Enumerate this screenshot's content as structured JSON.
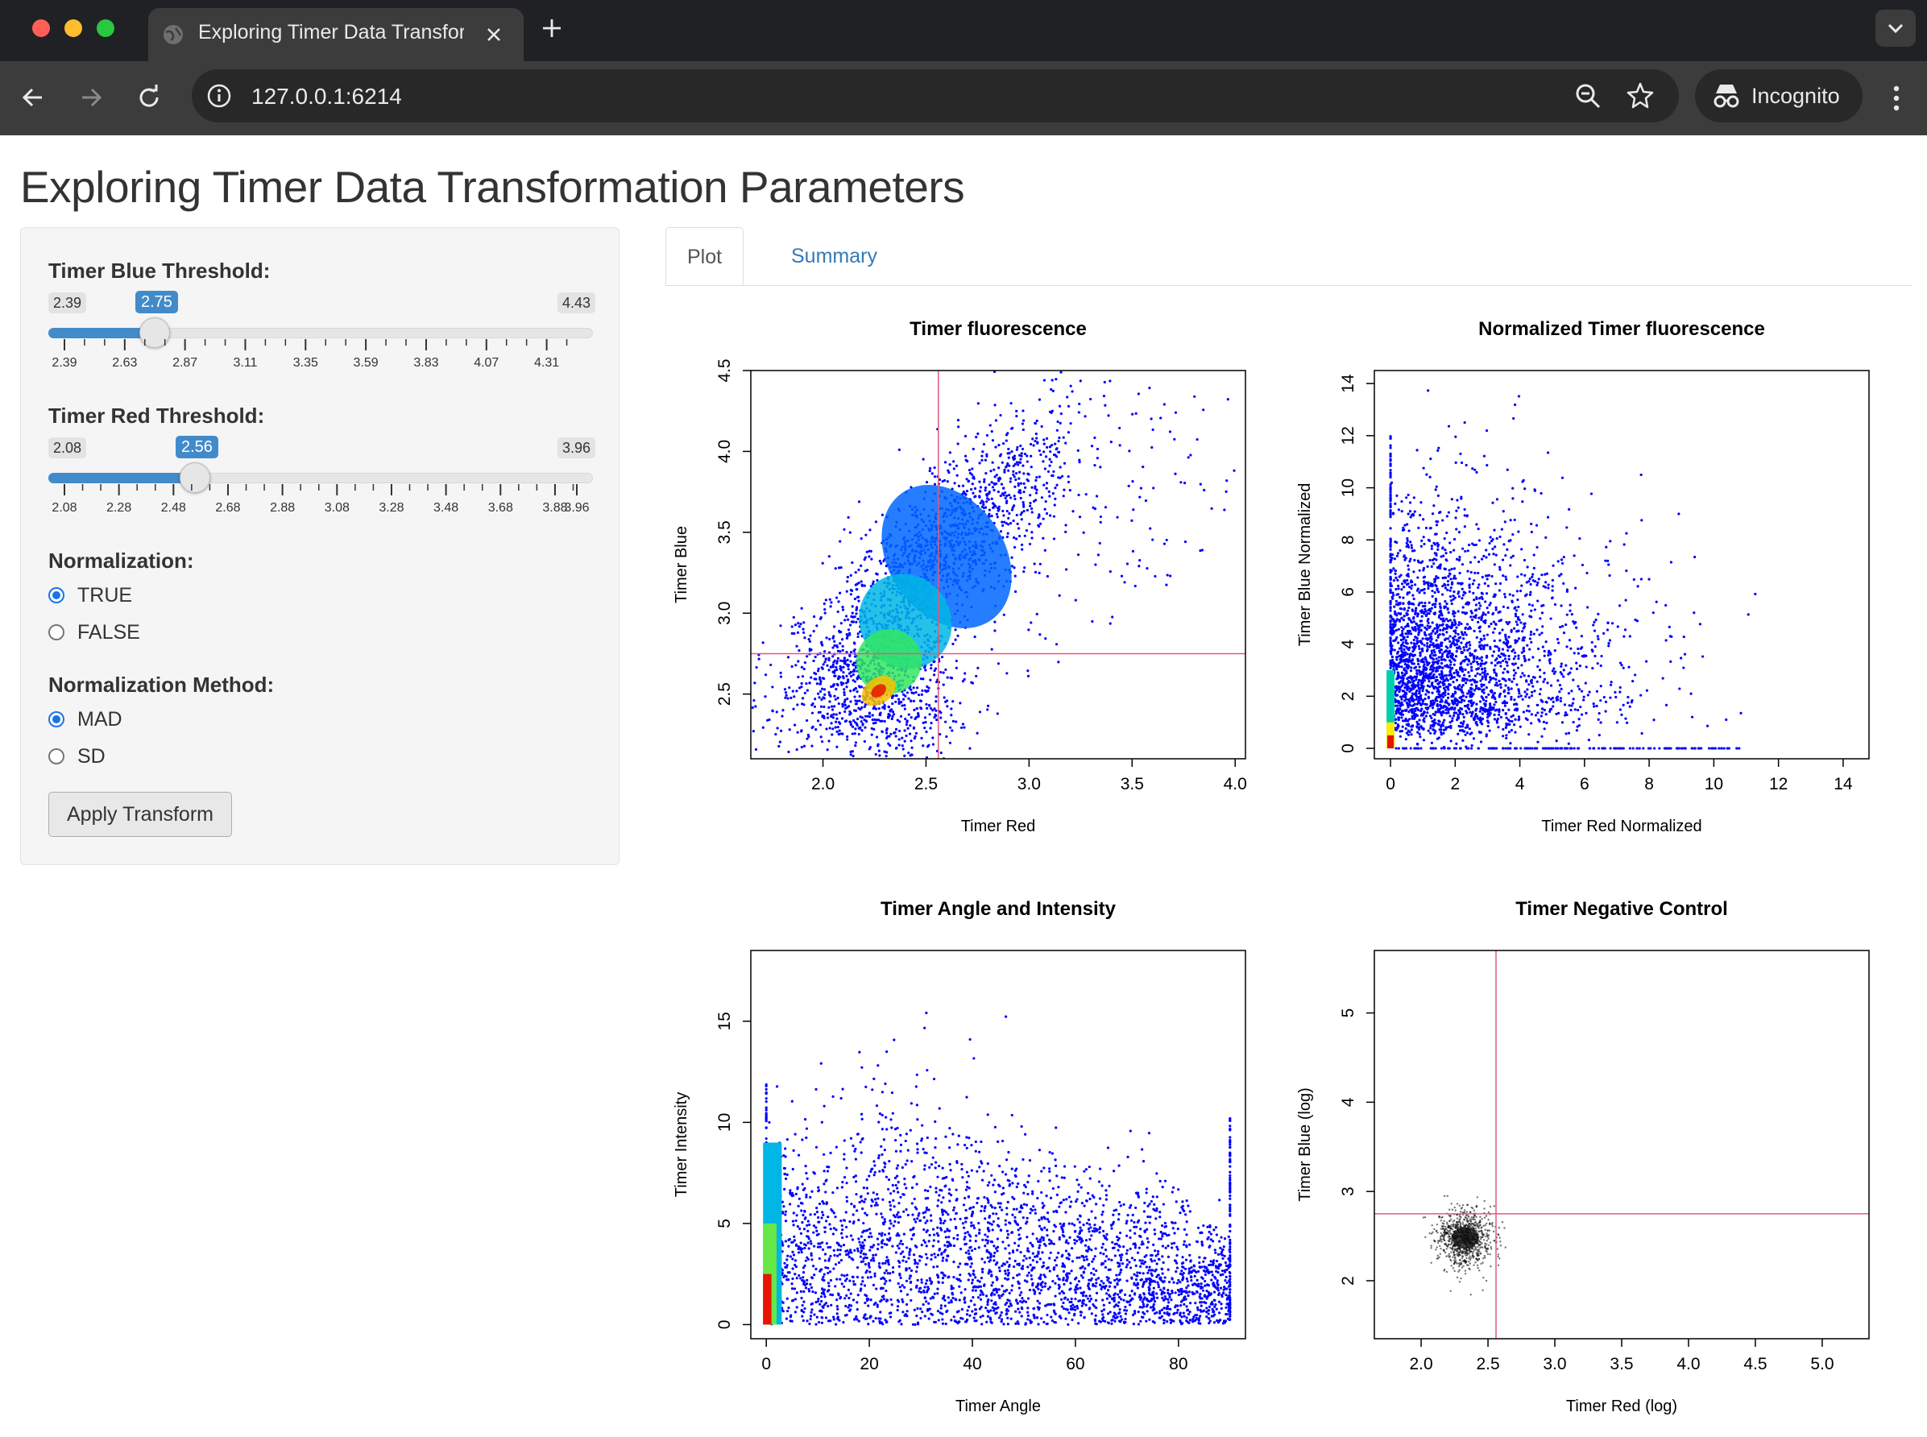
{
  "browser": {
    "tab_title": "Exploring Timer Data Transfor",
    "url": "127.0.0.1:6214",
    "incognito_label": "Incognito"
  },
  "page": {
    "title": "Exploring Timer Data Transformation Parameters"
  },
  "sidebar": {
    "blue_threshold": {
      "label": "Timer Blue Threshold:",
      "min": "2.39",
      "max": "4.43",
      "value": "2.75",
      "ticks": [
        "2.39",
        "2.63",
        "2.87",
        "3.11",
        "3.35",
        "3.59",
        "3.83",
        "4.07",
        "4.31"
      ]
    },
    "red_threshold": {
      "label": "Timer Red Threshold:",
      "min": "2.08",
      "max": "3.96",
      "value": "2.56",
      "ticks": [
        "2.08",
        "2.28",
        "2.48",
        "2.68",
        "2.88",
        "3.08",
        "3.28",
        "3.48",
        "3.68",
        "3.88",
        "3.96"
      ]
    },
    "normalization": {
      "label": "Normalization:",
      "options": [
        "TRUE",
        "FALSE"
      ],
      "selected": "TRUE"
    },
    "normalization_method": {
      "label": "Normalization Method:",
      "options": [
        "MAD",
        "SD"
      ],
      "selected": "MAD"
    },
    "apply_button": "Apply Transform"
  },
  "tabs": {
    "plot": "Plot",
    "summary": "Summary",
    "active": "Plot"
  },
  "chart_data": [
    {
      "type": "scatter",
      "title": "Timer fluorescence",
      "xlabel": "Timer Red",
      "ylabel": "Timer Blue",
      "xlim": [
        1.65,
        4.05
      ],
      "ylim": [
        2.1,
        4.5
      ],
      "xticks": [
        "2.0",
        "2.5",
        "3.0",
        "3.5",
        "4.0"
      ],
      "yticks": [
        "2.5",
        "3.0",
        "3.5",
        "4.0",
        "4.5"
      ],
      "thresholds": {
        "x": 2.56,
        "y": 2.75
      },
      "density_peak": {
        "x": 2.27,
        "y": 2.52
      },
      "colormap": "density: blue to green to yellow to red",
      "grid": false
    },
    {
      "type": "scatter",
      "title": "Normalized Timer fluorescence",
      "xlabel": "Timer Red Normalized",
      "ylabel": "Timer Blue Normalized",
      "xlim": [
        -0.5,
        14.8
      ],
      "ylim": [
        -0.4,
        14.5
      ],
      "xticks": [
        "0",
        "2",
        "4",
        "6",
        "8",
        "10",
        "12",
        "14"
      ],
      "yticks": [
        "0",
        "2",
        "4",
        "6",
        "8",
        "10",
        "12",
        "14"
      ],
      "density_peak": {
        "x": 0,
        "y": 0
      },
      "colormap": "density: blue to green to yellow to red",
      "grid": false
    },
    {
      "type": "scatter",
      "title": "Timer Angle and Intensity",
      "xlabel": "Timer Angle",
      "ylabel": "Timer Intensity",
      "xlim": [
        -3,
        93
      ],
      "ylim": [
        -0.7,
        18.5
      ],
      "xticks": [
        "0",
        "20",
        "40",
        "60",
        "80"
      ],
      "yticks": [
        "0",
        "5",
        "10",
        "15"
      ],
      "density_peak": {
        "x": 0,
        "y": 1
      },
      "colormap": "density: blue to green to yellow to red",
      "grid": false
    },
    {
      "type": "scatter",
      "title": "Timer Negative Control",
      "xlabel": "Timer Red (log)",
      "ylabel": "Timer Blue (log)",
      "xlim": [
        1.65,
        5.35
      ],
      "ylim": [
        1.35,
        5.7
      ],
      "xticks": [
        "2.0",
        "2.5",
        "3.0",
        "3.5",
        "4.0",
        "4.5",
        "5.0"
      ],
      "yticks": [
        "2",
        "3",
        "4",
        "5"
      ],
      "thresholds": {
        "x": 2.56,
        "y": 2.75
      },
      "cluster_center": {
        "x": 2.33,
        "y": 2.48
      },
      "point_color": "#000000",
      "grid": false
    }
  ],
  "colors": {
    "accent": "#428bca",
    "threshold_line": "#e05a7a",
    "point_blue": "#0000ff",
    "link": "#337ab7"
  },
  "icons": [
    "close-window-icon",
    "minimize-window-icon",
    "maximize-window-icon",
    "globe-icon",
    "close-tab-icon",
    "new-tab-icon",
    "tab-search-icon",
    "back-icon",
    "forward-icon",
    "reload-icon",
    "site-info-icon",
    "zoom-icon",
    "bookmark-star-icon",
    "incognito-icon",
    "more-menu-icon"
  ]
}
